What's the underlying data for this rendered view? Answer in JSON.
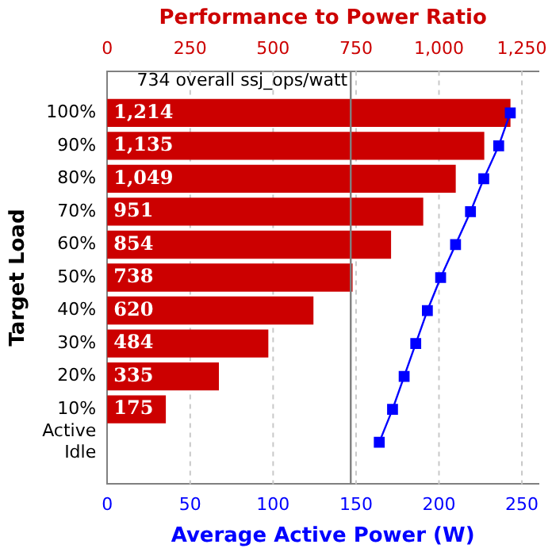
{
  "chart_data": {
    "type": "bar",
    "orientation": "horizontal",
    "x2label": "Performance to Power Ratio",
    "xlabel": "Average Active Power (W)",
    "ylabel": "Target Load",
    "categories": [
      "100%",
      "90%",
      "80%",
      "70%",
      "60%",
      "50%",
      "40%",
      "30%",
      "20%",
      "10%",
      "Active Idle"
    ],
    "series": [
      {
        "axis": "x2",
        "color": "#cc0000",
        "values": [
          1214,
          1135,
          1049,
          951,
          854,
          738,
          620,
          484,
          335,
          175,
          null
        ],
        "value_labels": [
          "1,214",
          "1,135",
          "1,049",
          "951",
          "854",
          "738",
          "620",
          "484",
          "335",
          "175",
          null
        ]
      },
      {
        "type": "line",
        "color": "#0000ff",
        "values": [
          243,
          236,
          227,
          219,
          210,
          201,
          193,
          186,
          179,
          172,
          164
        ]
      }
    ],
    "xlim": [
      0,
      260
    ],
    "xticks": [
      0,
      50,
      100,
      150,
      200,
      250
    ],
    "x2lim": [
      0,
      1300
    ],
    "x2ticks": [
      0,
      250,
      500,
      750,
      {
        "value": 1000,
        "label": "1,000"
      },
      {
        "value": 1250,
        "label": "1,250"
      }
    ],
    "ref_lines": [
      {
        "axis": "x2",
        "value": 734,
        "label": "734 overall ssj_ops/watt",
        "color": "#808080"
      }
    ],
    "grid": "x",
    "marker": "square",
    "line_style": "solid",
    "legend": false
  }
}
